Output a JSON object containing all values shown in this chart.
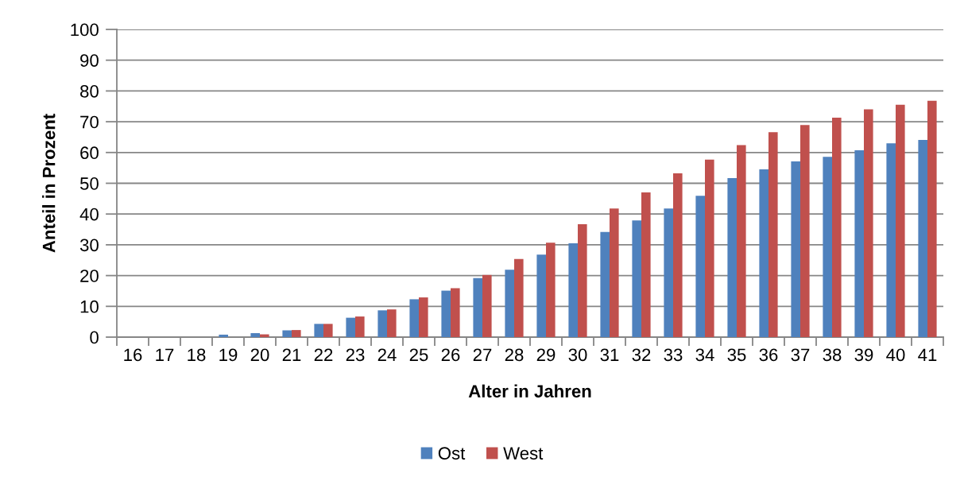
{
  "chart_data": {
    "type": "bar",
    "xlabel": "Alter in Jahren",
    "ylabel": "Anteil in Prozent",
    "categories": [
      "16",
      "17",
      "18",
      "19",
      "20",
      "21",
      "22",
      "23",
      "24",
      "25",
      "26",
      "27",
      "28",
      "29",
      "30",
      "31",
      "32",
      "33",
      "34",
      "35",
      "36",
      "37",
      "38",
      "39",
      "40",
      "41"
    ],
    "series": [
      {
        "name": "Ost",
        "color": "#4f81bd",
        "values": [
          0,
          0,
          0,
          0.8,
          1.3,
          2.2,
          4.3,
          6.3,
          8.7,
          12.3,
          15.1,
          19.2,
          21.9,
          26.8,
          30.5,
          34.2,
          37.9,
          41.8,
          45.9,
          51.7,
          54.5,
          57.1,
          58.6,
          60.7,
          63.0,
          64.1
        ]
      },
      {
        "name": "West",
        "color": "#c0504d",
        "values": [
          0,
          0,
          0,
          0,
          0.9,
          2.3,
          4.3,
          6.7,
          9.0,
          12.9,
          15.9,
          20.2,
          25.4,
          30.7,
          36.7,
          41.8,
          47.0,
          53.2,
          57.7,
          62.4,
          66.6,
          68.9,
          71.3,
          74.0,
          75.5,
          76.8
        ]
      }
    ],
    "ylim": [
      0,
      100
    ],
    "yticks": [
      0,
      10,
      20,
      30,
      40,
      50,
      60,
      70,
      80,
      90,
      100
    ],
    "grid": "y",
    "legend": "bottom"
  }
}
